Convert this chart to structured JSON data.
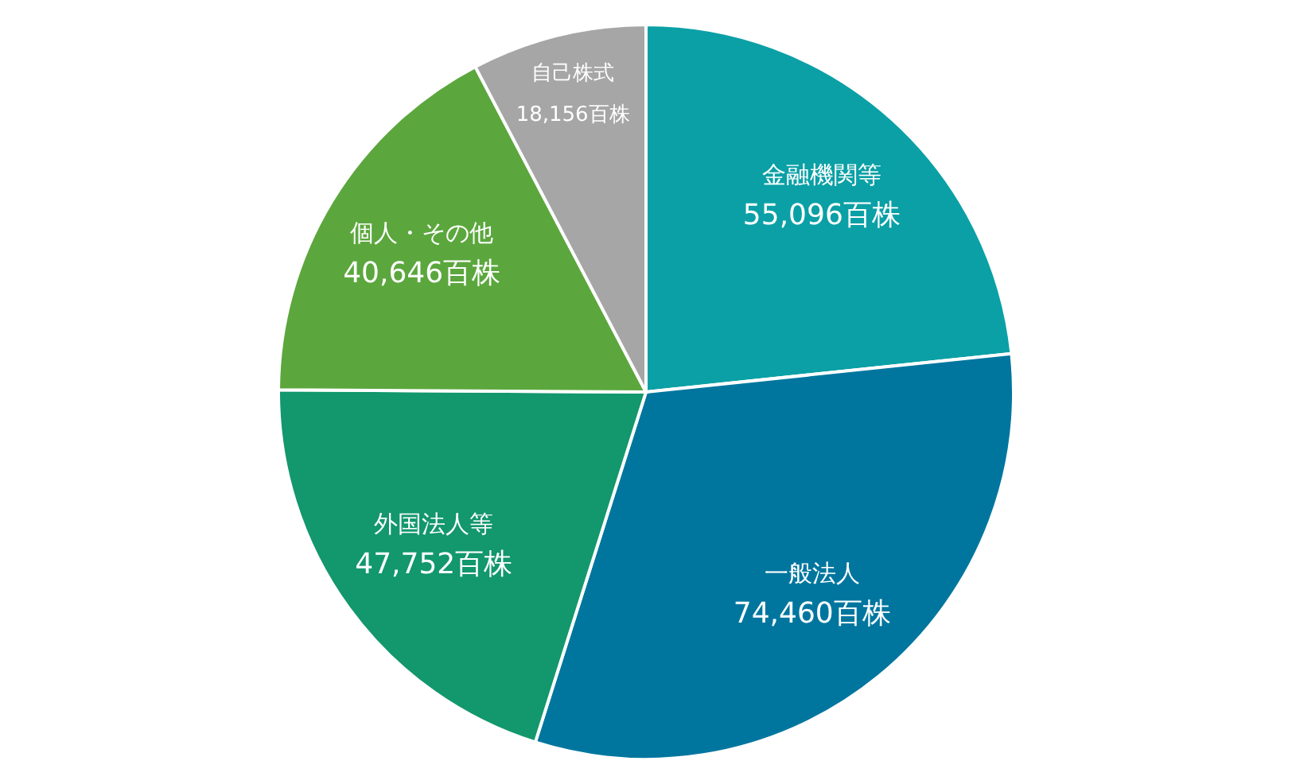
{
  "chart_data": {
    "type": "pie",
    "categories": [
      "金融機関等",
      "一般法人",
      "外国法人等",
      "個人・その他",
      "自己株式"
    ],
    "values": [
      55096,
      74460,
      47752,
      40646,
      18156
    ],
    "value_labels": [
      "55,096百株",
      "74,460百株",
      "47,752百株",
      "40,646百株",
      "18,156百株"
    ],
    "colors": [
      "#0aa0a6",
      "#00769f",
      "#13976d",
      "#5ba73d",
      "#a6a6a6"
    ]
  }
}
